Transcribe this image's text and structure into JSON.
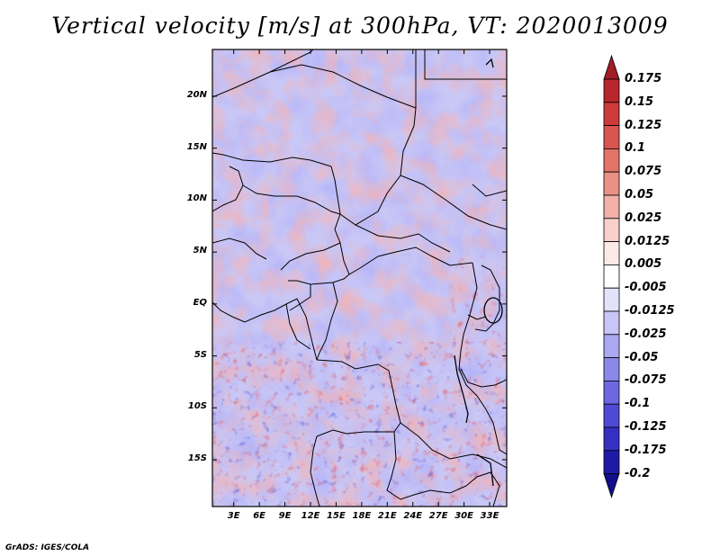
{
  "title": "Vertical velocity [m/s] at 300hPa, VT: 2020013009",
  "credit": "GrADS: IGES/COLA",
  "map": {
    "lat_ticks": [
      {
        "label": "20N",
        "value": 20
      },
      {
        "label": "15N",
        "value": 15
      },
      {
        "label": "10N",
        "value": 10
      },
      {
        "label": "5N",
        "value": 5
      },
      {
        "label": "EQ",
        "value": 0
      },
      {
        "label": "5S",
        "value": -5
      },
      {
        "label": "10S",
        "value": -10
      },
      {
        "label": "15S",
        "value": -15
      }
    ],
    "lon_ticks": [
      {
        "label": "3E",
        "value": 3
      },
      {
        "label": "6E",
        "value": 6
      },
      {
        "label": "9E",
        "value": 9
      },
      {
        "label": "12E",
        "value": 12
      },
      {
        "label": "15E",
        "value": 15
      },
      {
        "label": "18E",
        "value": 18
      },
      {
        "label": "21E",
        "value": 21
      },
      {
        "label": "24E",
        "value": 24
      },
      {
        "label": "27E",
        "value": 27
      },
      {
        "label": "30E",
        "value": 30
      },
      {
        "label": "33E",
        "value": 33
      }
    ],
    "lon_range": [
      0.5,
      35
    ],
    "lat_range": [
      -19.5,
      24.5
    ]
  },
  "colorbar": {
    "labels": [
      "0.175",
      "0.15",
      "0.125",
      "0.1",
      "0.075",
      "0.05",
      "0.025",
      "0.0125",
      "0.005",
      "-0.005",
      "-0.0125",
      "-0.025",
      "-0.05",
      "-0.075",
      "-0.1",
      "-0.125",
      "-0.175",
      "-0.2"
    ],
    "colors": [
      "#a11d26",
      "#b8272d",
      "#cc3a3a",
      "#d95550",
      "#e27369",
      "#ea9187",
      "#f2b0a8",
      "#f8d0cb",
      "#fceae7",
      "#ffffff",
      "#e2e2fb",
      "#c7c6f6",
      "#aaa8f0",
      "#8c88ea",
      "#6d68e2",
      "#4f49d6",
      "#3630c2",
      "#1f1aa6",
      "#120d8a"
    ]
  }
}
